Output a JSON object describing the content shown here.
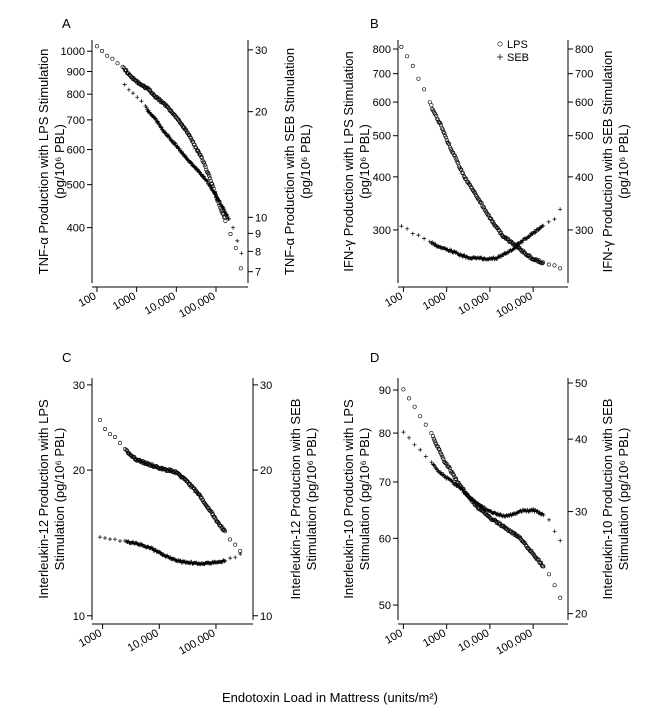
{
  "chart_data": [
    {
      "type": "scatter",
      "panel_label": "A",
      "xscale": "log",
      "xlim": [
        75,
        640000
      ],
      "xticks": [
        100,
        1000,
        10000,
        100000
      ],
      "xtick_labels": [
        "100",
        "1000",
        "10,000",
        "100,000"
      ],
      "ylabel_left": [
        "TNF-α Production with LPS Stimulation",
        "(pg/10⁶ PBL)"
      ],
      "ylim_left": [
        300,
        1060
      ],
      "yticks_left": [
        400,
        500,
        600,
        700,
        800,
        900,
        1000
      ],
      "ytick_labels_left": [
        "400",
        "500",
        "600",
        "700",
        "800",
        "900",
        "1000"
      ],
      "ylabel_right": [
        "TNF-α Production with SEB Stimulation",
        "(pg/10⁶ PBL)"
      ],
      "ylim_right": [
        6.5,
        32
      ],
      "yticks_right": [
        7,
        8,
        9,
        10,
        20,
        30
      ],
      "ytick_labels_right": [
        "7",
        "8",
        "9",
        "10",
        "20",
        "30"
      ],
      "series": [
        {
          "name": "LPS",
          "marker": "circle",
          "axis": "left",
          "x": [
            100,
            500,
            700,
            900,
            1200,
            1500,
            2000,
            3000,
            5000,
            10000,
            20000,
            50000,
            100000,
            200000,
            250000,
            300000,
            420000,
            500000
          ],
          "y": [
            1020,
            910,
            880,
            860,
            845,
            835,
            820,
            790,
            760,
            710,
            650,
            560,
            470,
            400,
            380,
            365,
            325,
            318
          ]
        },
        {
          "name": "SEB",
          "marker": "plus",
          "axis": "right",
          "x": [
            500,
            800,
            1200,
            1500,
            2000,
            3000,
            5000,
            10000,
            20000,
            50000,
            100000,
            200000,
            300000,
            500000
          ],
          "y": [
            24,
            22.5,
            21.5,
            21,
            20,
            19,
            17.5,
            16,
            14.5,
            13,
            11.5,
            10,
            9,
            7.5
          ]
        }
      ]
    },
    {
      "type": "scatter",
      "panel_label": "B",
      "xscale": "log",
      "xlim": [
        75,
        640000
      ],
      "xticks": [
        100,
        1000,
        10000,
        100000
      ],
      "xtick_labels": [
        "100",
        "1000",
        "10,000",
        "100,000"
      ],
      "ylabel_left": [
        "IFN-γ Production with LPS Stimulation",
        "(pg/10⁶ PBL)"
      ],
      "ylim_left": [
        225,
        840
      ],
      "yticks_left": [
        300,
        400,
        500,
        600,
        700,
        800
      ],
      "ytick_labels_left": [
        "300",
        "400",
        "500",
        "600",
        "700",
        "800"
      ],
      "ylabel_right": [
        "IFN-γ Production with SEB Stimulation",
        "(pg/10⁶ PBL)"
      ],
      "ylim_right": [
        225,
        840
      ],
      "yticks_right": [
        300,
        400,
        500,
        600,
        700,
        800
      ],
      "ytick_labels_right": [
        "300",
        "400",
        "500",
        "600",
        "700",
        "800"
      ],
      "legend": {
        "position": "top-right",
        "entries": [
          {
            "marker": "circle",
            "label": "LPS"
          },
          {
            "marker": "plus",
            "label": "SEB"
          }
        ]
      },
      "series": [
        {
          "name": "LPS",
          "marker": "circle",
          "axis": "left",
          "x": [
            90,
            500,
            800,
            1000,
            1200,
            1500,
            2000,
            3000,
            5000,
            10000,
            20000,
            50000,
            100000,
            200000,
            300000,
            500000
          ],
          "y": [
            810,
            570,
            520,
            490,
            470,
            450,
            420,
            390,
            360,
            320,
            290,
            270,
            256,
            250,
            248,
            242
          ]
        },
        {
          "name": "SEB",
          "marker": "plus",
          "axis": "right",
          "x": [
            90,
            500,
            800,
            1000,
            1500,
            2000,
            3000,
            5000,
            10000,
            15000,
            20000,
            30000,
            50000,
            100000,
            200000,
            300000,
            500000
          ],
          "y": [
            305,
            278,
            272,
            270,
            266,
            262,
            259,
            257,
            256,
            258,
            262,
            268,
            280,
            295,
            310,
            318,
            345
          ]
        }
      ]
    },
    {
      "type": "scatter",
      "panel_label": "C",
      "xscale": "log",
      "xlim": [
        650,
        450000
      ],
      "xticks": [
        1000,
        10000,
        100000
      ],
      "xtick_labels": [
        "1000",
        "10,000",
        "100,000"
      ],
      "ylabel_left": [
        "Interleukin-12 Production with LPS",
        "Stimulation (pg/10⁶ PBL)"
      ],
      "ylim_left": [
        9.8,
        31
      ],
      "yticks_left": [
        10,
        20,
        30
      ],
      "ytick_labels_left": [
        "10",
        "20",
        "30"
      ],
      "ylabel_right": [
        "Interleukin-12 Production with SEB",
        "Stimulation (pg/10⁶ PBL)"
      ],
      "ylim_right": [
        9.8,
        31
      ],
      "yticks_right": [
        10,
        20,
        30
      ],
      "ytick_labels_right": [
        "10",
        "20",
        "30"
      ],
      "series": [
        {
          "name": "LPS",
          "marker": "circle",
          "axis": "left",
          "x": [
            900,
            1200,
            1400,
            1600,
            3000,
            4000,
            5000,
            10000,
            20000,
            30000,
            50000,
            100000,
            150000,
            200000,
            250000,
            300000
          ],
          "y": [
            25.5,
            24,
            23.8,
            23.5,
            21.5,
            21,
            20.8,
            20.2,
            19.8,
            19,
            17.8,
            15.8,
            14.8,
            14.2,
            13.8,
            13.2
          ]
        },
        {
          "name": "SEB",
          "marker": "plus",
          "axis": "right",
          "x": [
            900,
            1200,
            1400,
            3000,
            4000,
            5000,
            8000,
            10000,
            20000,
            30000,
            50000,
            100000,
            150000,
            200000,
            250000,
            300000
          ],
          "y": [
            14.5,
            14.4,
            14.4,
            14.2,
            14.1,
            14,
            13.7,
            13.5,
            13,
            12.9,
            12.8,
            12.9,
            13,
            13.2,
            13.4,
            13.6
          ]
        }
      ]
    },
    {
      "type": "scatter",
      "panel_label": "D",
      "xscale": "log",
      "xlim": [
        75,
        640000
      ],
      "xticks": [
        100,
        1000,
        10000,
        100000
      ],
      "xtick_labels": [
        "100",
        "1000",
        "10,000",
        "100,000"
      ],
      "ylabel_left": [
        "Interleukin-10 Production with LPS",
        "Stimulation (pg/10⁶ PBL)"
      ],
      "ylim_left": [
        48,
        93
      ],
      "yticks_left": [
        50,
        60,
        70,
        80,
        90
      ],
      "ytick_labels_left": [
        "50",
        "60",
        "70",
        "80",
        "90"
      ],
      "ylabel_right": [
        "Interleukin-10 Production with SEB",
        "Stimulation (pg/10⁶ PBL)"
      ],
      "ylim_right": [
        19.5,
        51
      ],
      "yticks_right": [
        20,
        30,
        40,
        50
      ],
      "ytick_labels_right": [
        "20",
        "30",
        "40",
        "50"
      ],
      "series": [
        {
          "name": "LPS",
          "marker": "circle",
          "axis": "left",
          "x": [
            100,
            500,
            700,
            900,
            1200,
            1500,
            2000,
            3000,
            5000,
            10000,
            20000,
            50000,
            100000,
            200000,
            300000,
            400000,
            500000
          ],
          "y": [
            90,
            79,
            76,
            74,
            72.5,
            71,
            69.5,
            67.5,
            65.5,
            63.5,
            62,
            60,
            57.5,
            55,
            53,
            51.5,
            49.5
          ]
        },
        {
          "name": "SEB",
          "marker": "plus",
          "axis": "right",
          "x": [
            100,
            500,
            700,
            900,
            1200,
            1500,
            2000,
            3000,
            5000,
            10000,
            20000,
            30000,
            50000,
            100000,
            200000,
            300000,
            400000,
            500000
          ],
          "y": [
            41,
            36,
            35,
            34.5,
            34,
            33.5,
            33,
            32,
            31,
            30,
            29.5,
            29.6,
            30,
            30.2,
            29.5,
            28,
            27,
            26
          ]
        }
      ]
    }
  ],
  "xlabel": "Endotoxin Load in Mattress (units/m²)",
  "colors": {
    "ink": "#000000",
    "background": "#ffffff"
  }
}
